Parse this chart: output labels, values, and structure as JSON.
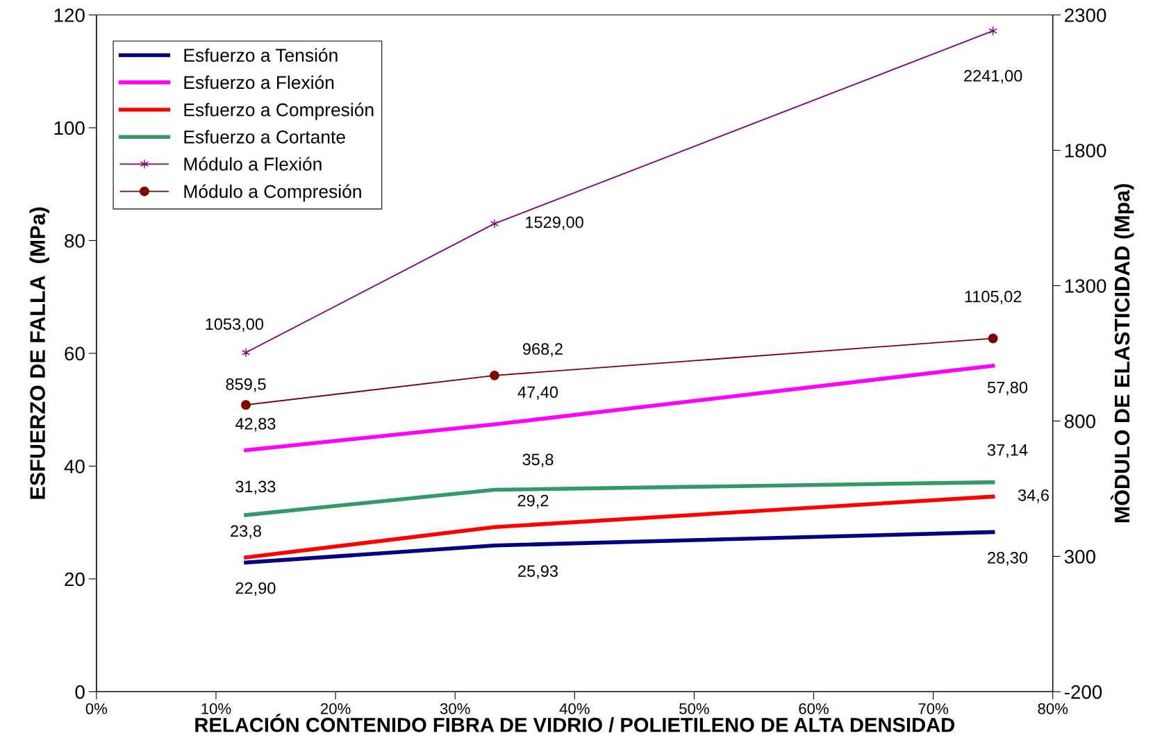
{
  "chart_data": {
    "type": "line",
    "xlabel": "RELACIÓN CONTENIDO FIBRA DE VIDRIO / POLIETILENO DE ALTA DENSIDAD",
    "ylabel": "ESFUERZO DE FALLA  (MPa)",
    "y2label": "MÒDULO DE ELASTICIDAD (Mpa)",
    "x": [
      12.5,
      33.3,
      75
    ],
    "xlim": [
      0,
      80
    ],
    "xticks": [
      {
        "value": 0,
        "label": "0%"
      },
      {
        "value": 10,
        "label": "10%"
      },
      {
        "value": 20,
        "label": "20%"
      },
      {
        "value": 30,
        "label": "30%"
      },
      {
        "value": 40,
        "label": "40%"
      },
      {
        "value": 50,
        "label": "50%"
      },
      {
        "value": 60,
        "label": "60%"
      },
      {
        "value": 70,
        "label": "70%"
      },
      {
        "value": 80,
        "label": "80%"
      }
    ],
    "ylim": [
      0,
      120
    ],
    "yticks": [
      0,
      20,
      40,
      60,
      80,
      100,
      120
    ],
    "y2lim": [
      -200,
      2300
    ],
    "y2ticks": [
      -200,
      300,
      800,
      1300,
      1800,
      2300
    ],
    "grid": false,
    "legend": "top left",
    "series": [
      {
        "name": "Esfuerzo a Tensión",
        "color": "#000080",
        "marker": "none",
        "values": [
          22.9,
          25.93,
          28.3
        ],
        "value_labels": [
          "22,90",
          "25,93",
          "28,30"
        ]
      },
      {
        "name": "Esfuerzo a Flexión",
        "color": "#ff00ff",
        "marker": "none",
        "values": [
          42.83,
          47.4,
          57.8
        ],
        "value_labels": [
          "42,83",
          "47,40",
          "57,80"
        ]
      },
      {
        "name": "Esfuerzo a Compresión",
        "color": "#ff0000",
        "marker": "none",
        "values": [
          23.8,
          29.2,
          34.6
        ],
        "value_labels": [
          "23,8",
          "29,2",
          "34,6"
        ]
      },
      {
        "name": "Esfuerzo a Cortante",
        "color": "#339966",
        "marker": "none",
        "values": [
          31.33,
          35.8,
          37.14
        ],
        "value_labels": [
          "31,33",
          "35,8",
          "37,14"
        ]
      },
      {
        "name": "Módulo a Flexión",
        "color": "#800080",
        "marker": "cross",
        "axis": "y2",
        "values": [
          1053.0,
          1529.0,
          2241.0
        ],
        "value_labels": [
          "1053,00",
          "1529,00",
          "2241,00"
        ]
      },
      {
        "name": "Módulo a Compresión",
        "color": "#800000",
        "marker": "circle",
        "axis": "y2",
        "values": [
          859.5,
          968.2,
          1105.02
        ],
        "value_labels": [
          "859,5",
          "968,2",
          "1105,02"
        ]
      }
    ]
  }
}
